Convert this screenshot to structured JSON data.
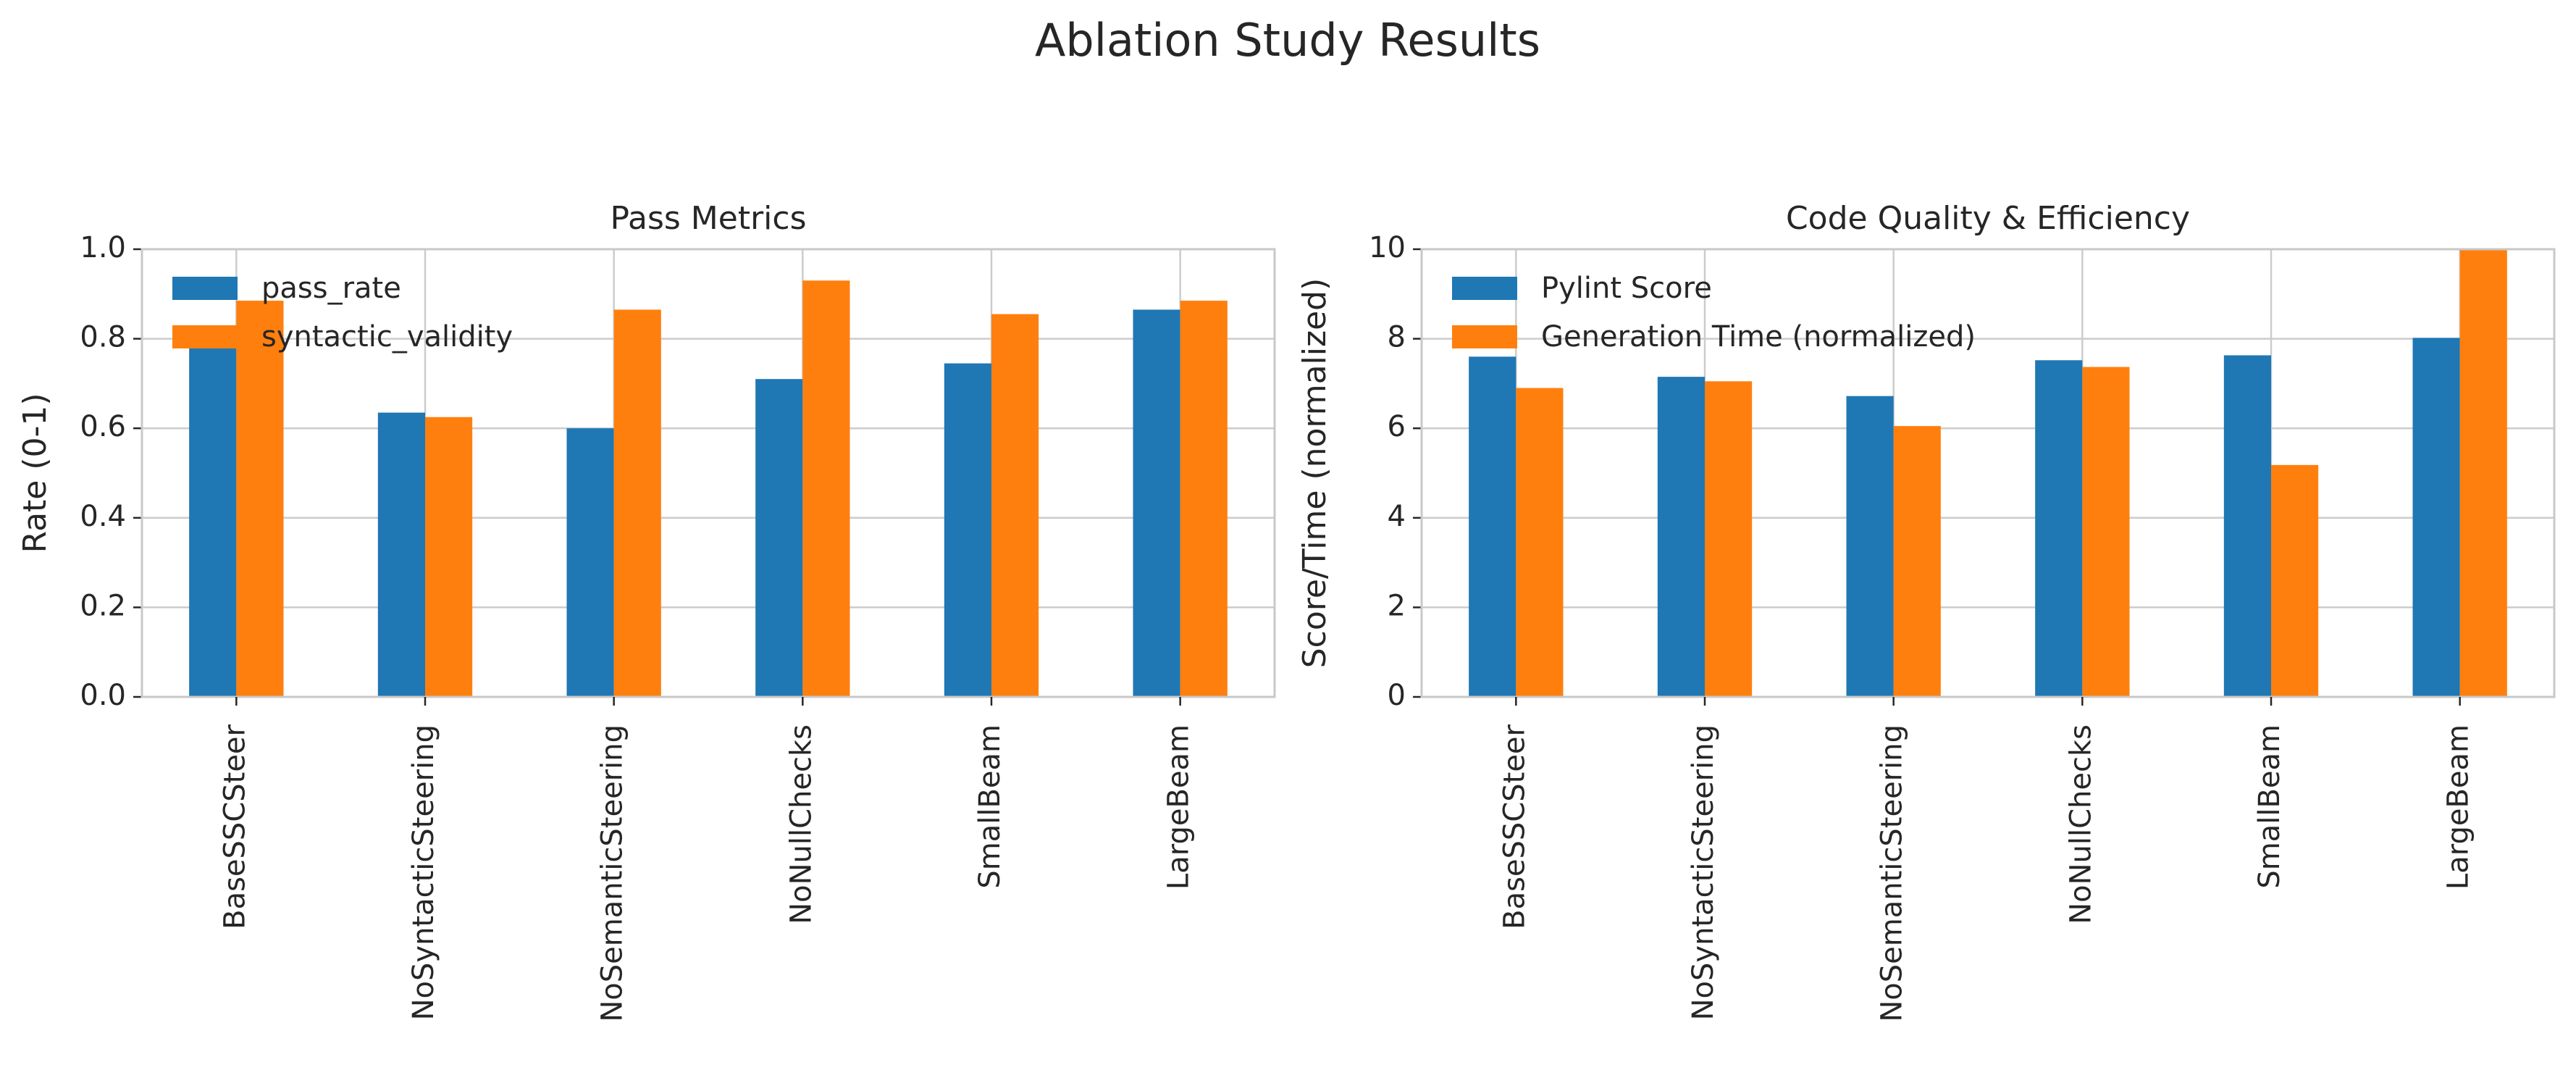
{
  "figure": {
    "title": "Ablation Study Results"
  },
  "colors": {
    "blue": "#1f77b4",
    "orange": "#ff7f0e",
    "grid": "#cccccc",
    "frame": "#c8c8c8",
    "text": "#262626"
  },
  "chart_data": [
    {
      "type": "bar",
      "title": "Pass Metrics",
      "xlabel": "",
      "ylabel": "Rate (0-1)",
      "ylim": [
        0,
        1.0
      ],
      "yticks": [
        "0.0",
        "0.2",
        "0.4",
        "0.6",
        "0.8",
        "1.0"
      ],
      "grid": true,
      "legend_position": "upper-left",
      "categories": [
        "BaseSSCSteer",
        "NoSyntacticSteering",
        "NoSemanticSteering",
        "NoNullChecks",
        "SmallBeam",
        "LargeBeam"
      ],
      "series": [
        {
          "name": "pass_rate",
          "color": "#1f77b4",
          "values": [
            0.8,
            0.635,
            0.6,
            0.71,
            0.745,
            0.865
          ]
        },
        {
          "name": "syntactic_validity",
          "color": "#ff7f0e",
          "values": [
            0.885,
            0.625,
            0.865,
            0.93,
            0.855,
            0.885
          ]
        }
      ]
    },
    {
      "type": "bar",
      "title": "Code Quality & Efficiency",
      "xlabel": "",
      "ylabel": "Score/Time (normalized)",
      "ylim": [
        0,
        10
      ],
      "yticks": [
        "0",
        "2",
        "4",
        "6",
        "8",
        "10"
      ],
      "grid": true,
      "legend_position": "upper-left",
      "categories": [
        "BaseSSCSteer",
        "NoSyntacticSteering",
        "NoSemanticSteering",
        "NoNullChecks",
        "SmallBeam",
        "LargeBeam"
      ],
      "series": [
        {
          "name": "Pylint Score",
          "color": "#1f77b4",
          "values": [
            7.6,
            7.15,
            6.72,
            7.52,
            7.63,
            8.02
          ]
        },
        {
          "name": "Generation Time (normalized)",
          "color": "#ff7f0e",
          "values": [
            6.9,
            7.05,
            6.05,
            7.37,
            5.18,
            10.0
          ]
        }
      ]
    }
  ]
}
